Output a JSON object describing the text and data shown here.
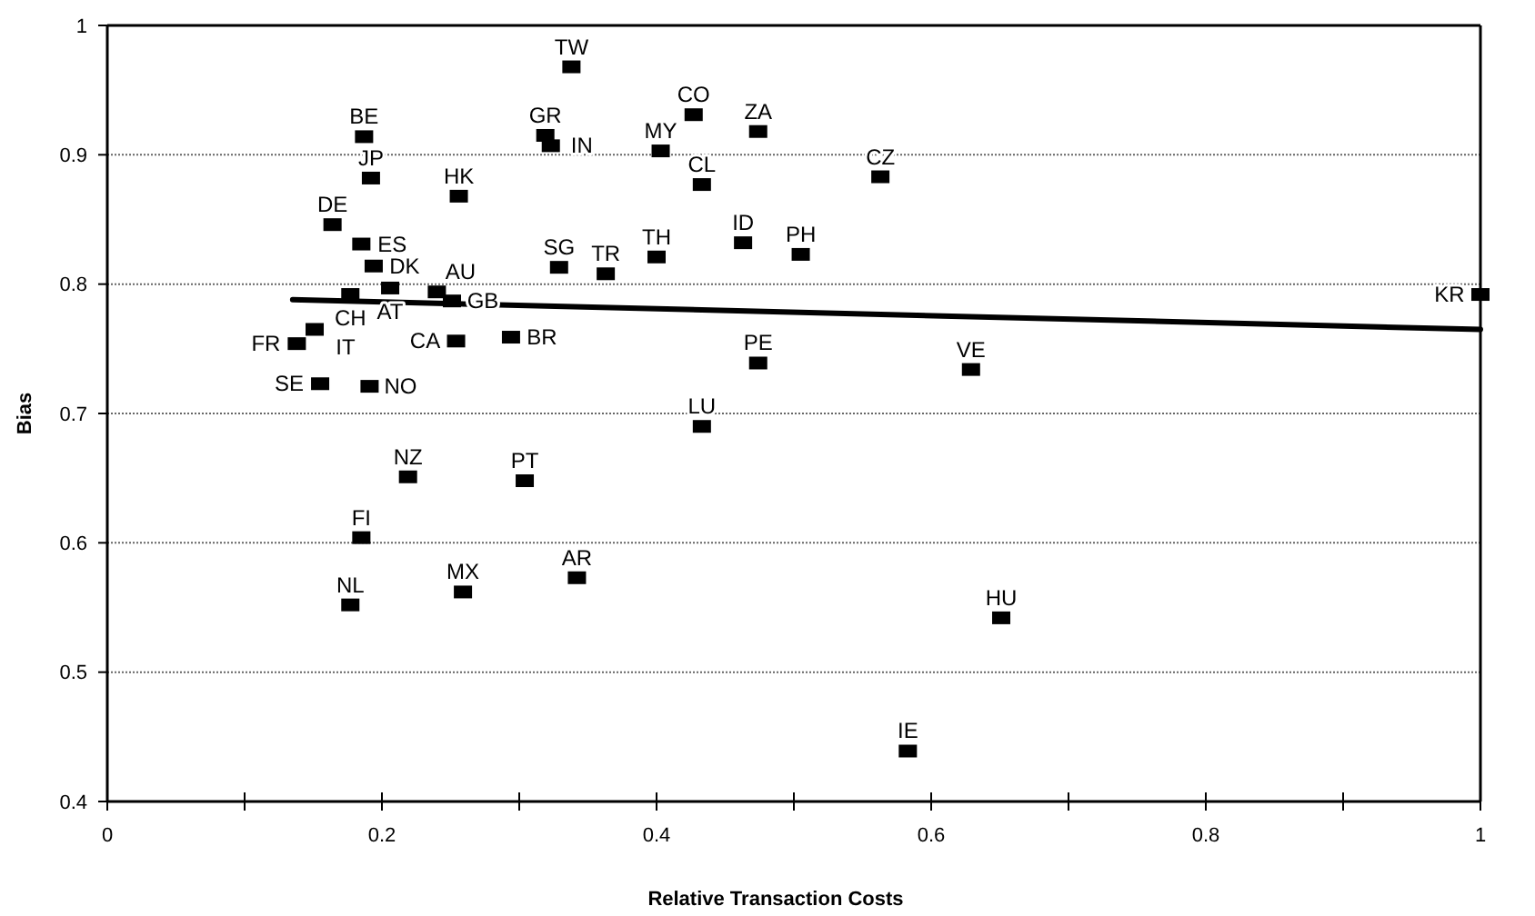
{
  "chart_data": {
    "type": "scatter",
    "xlabel": "Relative Transaction Costs",
    "ylabel": "Bias",
    "xlim": [
      0,
      1
    ],
    "ylim": [
      0.4,
      1
    ],
    "xticks": [
      0,
      {
        "value": 0.1,
        "label": null
      },
      0.2,
      {
        "value": 0.3,
        "label": null
      },
      0.4,
      {
        "value": 0.5,
        "label": null
      },
      0.6,
      {
        "value": 0.7,
        "label": null
      },
      0.8,
      {
        "value": 0.9,
        "label": null
      },
      1
    ],
    "yticks": [
      0.4,
      0.5,
      0.6,
      0.7,
      0.8,
      0.9,
      1
    ],
    "grid": "y",
    "series": [
      {
        "marker": "square",
        "color": "#000000",
        "x": [
          0.187,
          0.192,
          0.164,
          0.185,
          0.194,
          0.206,
          0.177,
          0.24,
          0.251,
          0.138,
          0.151,
          0.155,
          0.191,
          0.254,
          0.294,
          0.256,
          0.319,
          0.323,
          0.338,
          0.427,
          0.474,
          0.403,
          0.433,
          0.563,
          0.329,
          0.363,
          0.4,
          0.463,
          0.505,
          0.474,
          0.629,
          0.433,
          0.219,
          0.304,
          0.185,
          0.177,
          0.259,
          0.342,
          0.651,
          0.583,
          1.0
        ],
        "values": [
          0.914,
          0.882,
          0.846,
          0.831,
          0.814,
          0.797,
          0.792,
          0.794,
          0.787,
          0.754,
          0.765,
          0.723,
          0.721,
          0.756,
          0.759,
          0.868,
          0.915,
          0.907,
          0.968,
          0.931,
          0.918,
          0.903,
          0.877,
          0.883,
          0.813,
          0.808,
          0.821,
          0.832,
          0.823,
          0.739,
          0.734,
          0.69,
          0.651,
          0.648,
          0.604,
          0.552,
          0.562,
          0.573,
          0.542,
          0.439,
          0.792
        ]
      },
      {
        "type": "line",
        "color": "#000000",
        "x": [
          0.135,
          1
        ],
        "values": [
          0.788,
          0.765
        ]
      }
    ],
    "annotations": [
      {
        "text": "BE",
        "x": 0.187,
        "y": 0.914
      },
      {
        "text": "JP",
        "x": 0.192,
        "y": 0.882
      },
      {
        "text": "DE",
        "x": 0.164,
        "y": 0.846
      },
      {
        "text": "ES",
        "x": 0.185,
        "y": 0.831
      },
      {
        "text": "DK",
        "x": 0.194,
        "y": 0.814
      },
      {
        "text": "AT",
        "x": 0.206,
        "y": 0.797
      },
      {
        "text": "CH",
        "x": 0.177,
        "y": 0.792
      },
      {
        "text": "AU",
        "x": 0.24,
        "y": 0.794
      },
      {
        "text": "GB",
        "x": 0.251,
        "y": 0.787
      },
      {
        "text": "FR",
        "x": 0.138,
        "y": 0.754
      },
      {
        "text": "IT",
        "x": 0.151,
        "y": 0.765
      },
      {
        "text": "SE",
        "x": 0.155,
        "y": 0.723
      },
      {
        "text": "NO",
        "x": 0.191,
        "y": 0.721
      },
      {
        "text": "CA",
        "x": 0.254,
        "y": 0.756
      },
      {
        "text": "BR",
        "x": 0.294,
        "y": 0.759
      },
      {
        "text": "HK",
        "x": 0.256,
        "y": 0.868
      },
      {
        "text": "GR",
        "x": 0.319,
        "y": 0.915
      },
      {
        "text": "IN",
        "x": 0.323,
        "y": 0.907
      },
      {
        "text": "TW",
        "x": 0.338,
        "y": 0.968
      },
      {
        "text": "CO",
        "x": 0.427,
        "y": 0.931
      },
      {
        "text": "ZA",
        "x": 0.474,
        "y": 0.918
      },
      {
        "text": "MY",
        "x": 0.403,
        "y": 0.903
      },
      {
        "text": "CL",
        "x": 0.433,
        "y": 0.877
      },
      {
        "text": "CZ",
        "x": 0.563,
        "y": 0.883
      },
      {
        "text": "SG",
        "x": 0.329,
        "y": 0.813
      },
      {
        "text": "TR",
        "x": 0.363,
        "y": 0.808
      },
      {
        "text": "TH",
        "x": 0.4,
        "y": 0.821
      },
      {
        "text": "ID",
        "x": 0.463,
        "y": 0.832
      },
      {
        "text": "PH",
        "x": 0.505,
        "y": 0.823
      },
      {
        "text": "PE",
        "x": 0.474,
        "y": 0.739
      },
      {
        "text": "VE",
        "x": 0.629,
        "y": 0.734
      },
      {
        "text": "LU",
        "x": 0.433,
        "y": 0.69
      },
      {
        "text": "NZ",
        "x": 0.219,
        "y": 0.651
      },
      {
        "text": "PT",
        "x": 0.304,
        "y": 0.648
      },
      {
        "text": "FI",
        "x": 0.185,
        "y": 0.604
      },
      {
        "text": "NL",
        "x": 0.177,
        "y": 0.552
      },
      {
        "text": "MX",
        "x": 0.259,
        "y": 0.562
      },
      {
        "text": "AR",
        "x": 0.342,
        "y": 0.573
      },
      {
        "text": "HU",
        "x": 0.651,
        "y": 0.542
      },
      {
        "text": "IE",
        "x": 0.583,
        "y": 0.439
      },
      {
        "text": "KR",
        "x": 1.0,
        "y": 0.792
      }
    ]
  }
}
